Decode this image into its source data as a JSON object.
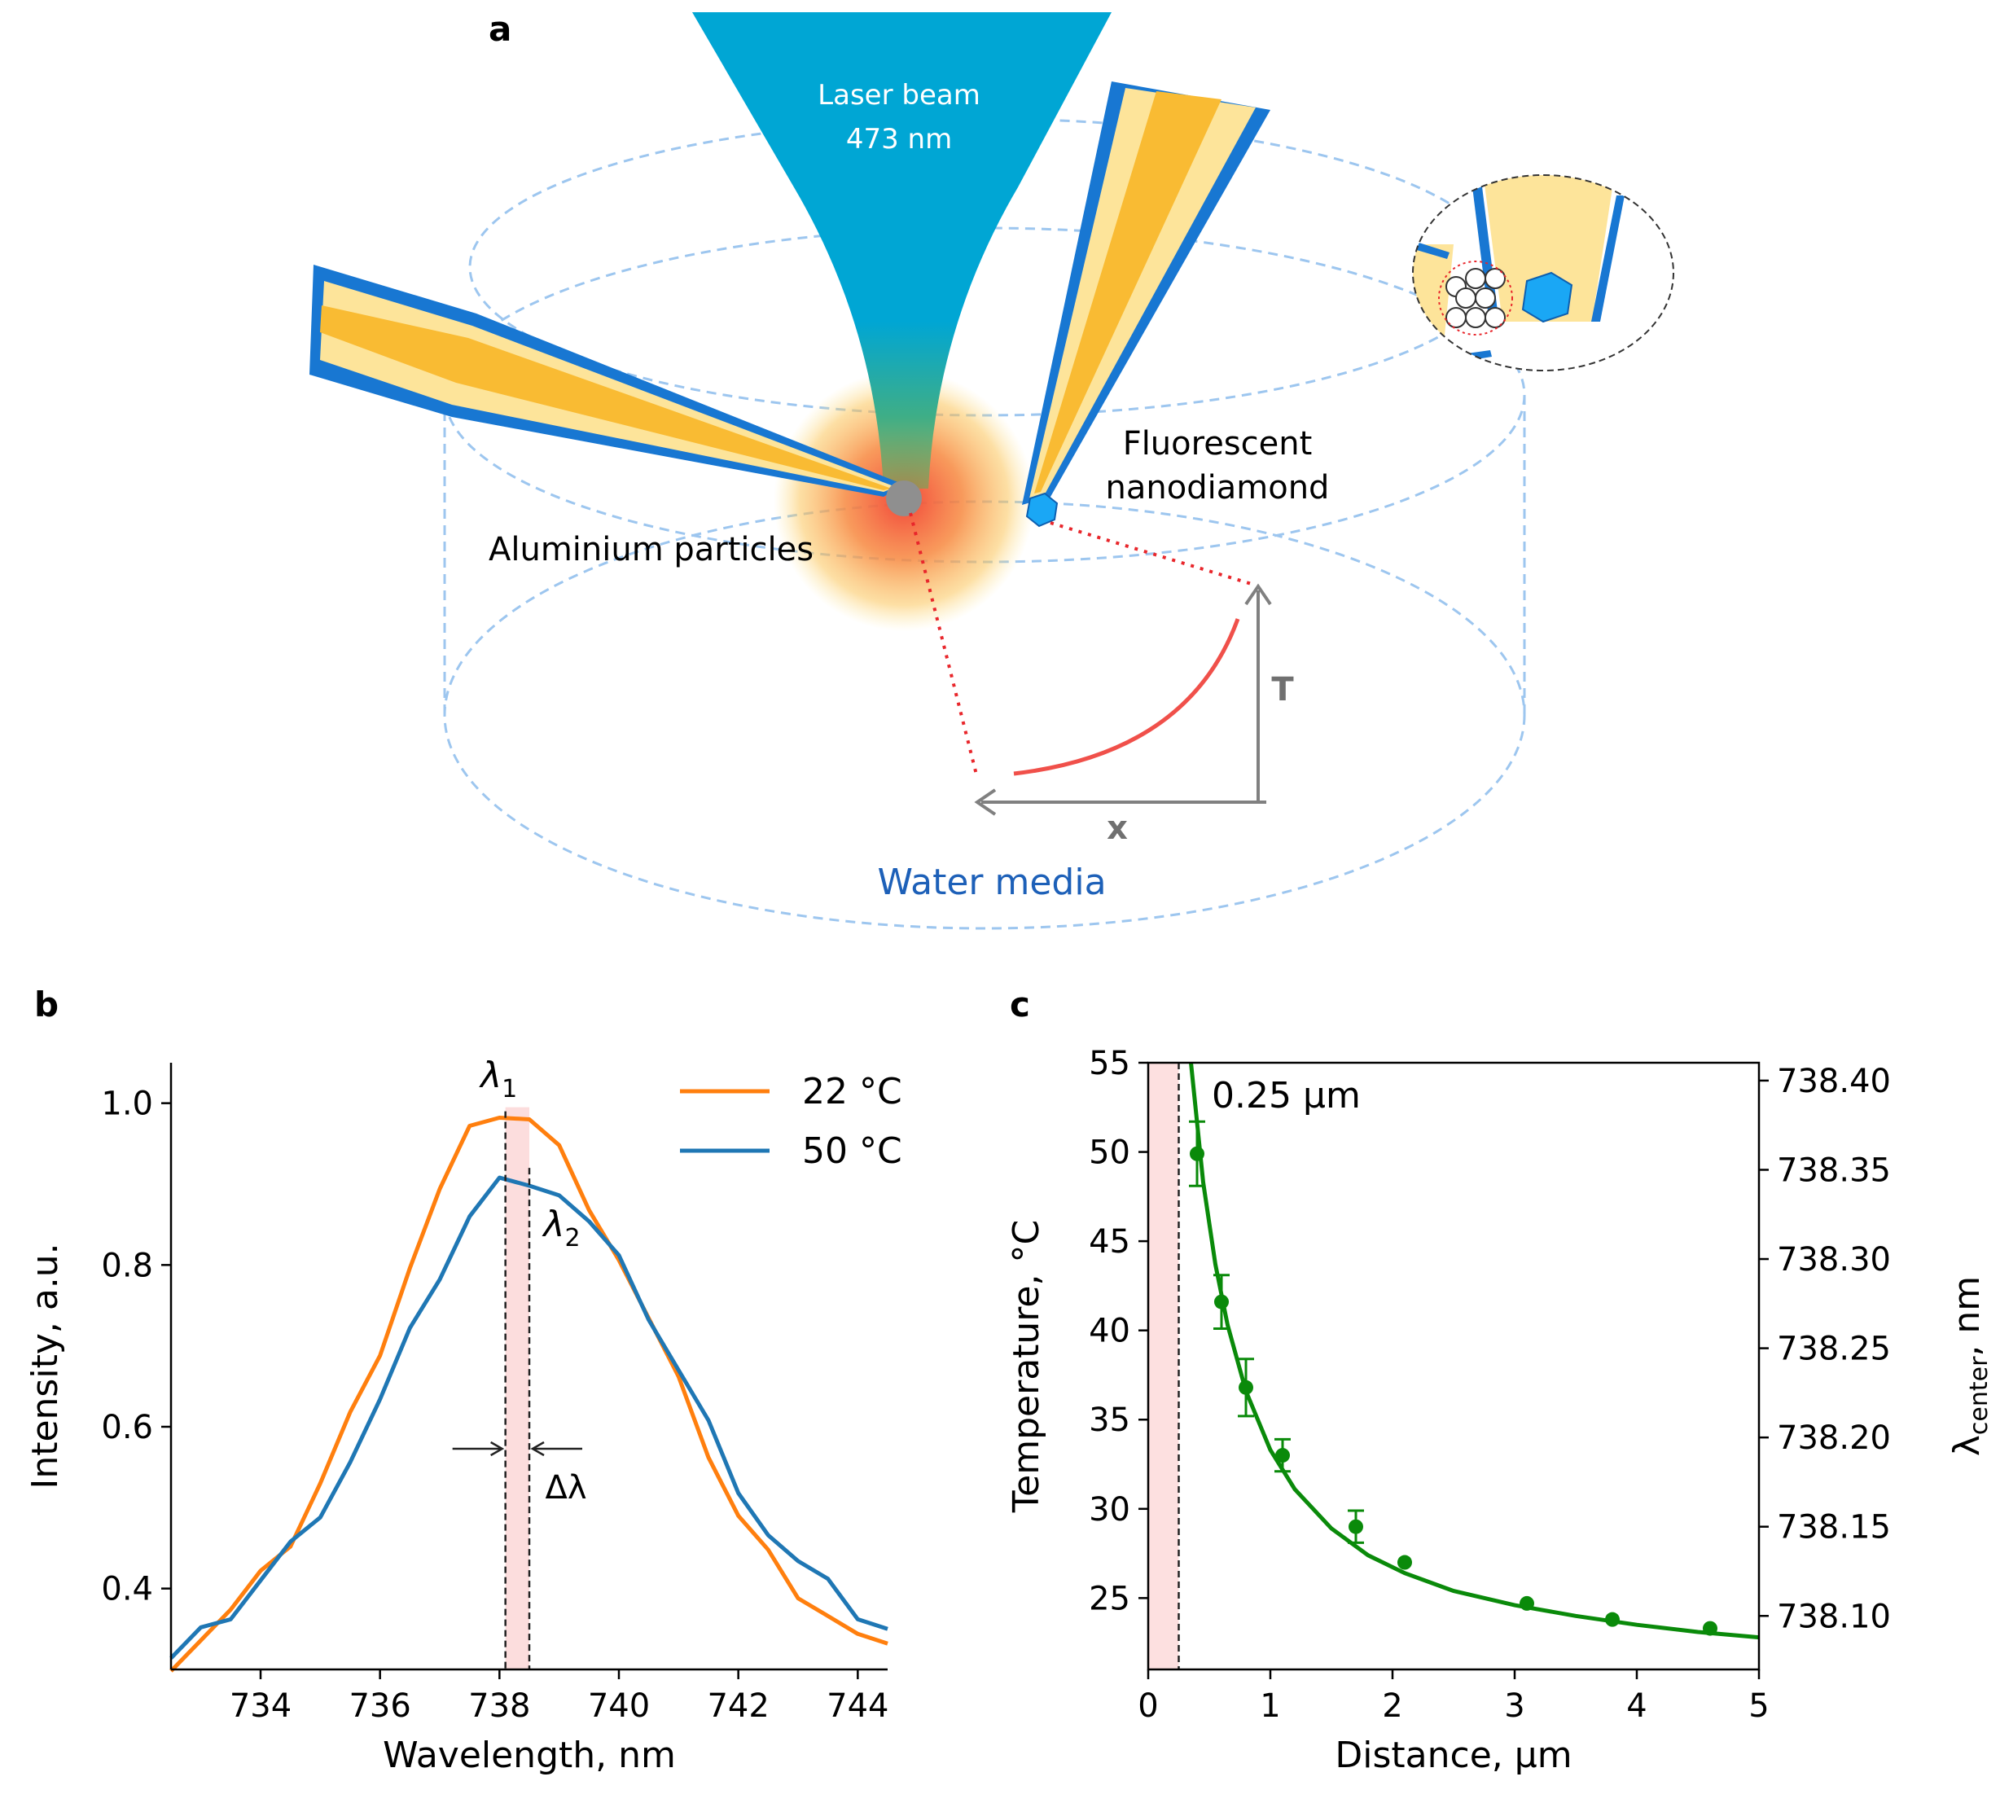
{
  "panel_a": {
    "label": "a",
    "laser_line1": "Laser beam",
    "laser_line2": "473 nm",
    "aluminium_label": "Aluminium particles",
    "nanodiamond_line1": "Fluorescent",
    "nanodiamond_line2": "nanodiamond",
    "water_label": "Water media",
    "axis_t": "T",
    "axis_x": "x",
    "colors": {
      "laser": "#00a6d4",
      "pipette_outer": "#1877d2",
      "pipette_fill": "#fde49a",
      "pipette_core": "#f9bb33",
      "dish_dash": "#9dc6ef",
      "heat": "#f2473a",
      "nanodiamond": "#1aa7f5",
      "water_text": "#1d60b8"
    }
  },
  "chart_data": [
    {
      "panel": "b",
      "type": "line",
      "xlabel": "Wavelength, nm",
      "ylabel": "Intensity, a.u.",
      "xlim": [
        732.5,
        744.5
      ],
      "ylim": [
        0.3,
        1.05
      ],
      "xticks": [
        "734",
        "736",
        "738",
        "740",
        "742",
        "744"
      ],
      "yticks": [
        "0.4",
        "0.6",
        "0.8",
        "1.0"
      ],
      "series": [
        {
          "name": "22 °C",
          "color": "#ff7f0e",
          "x": [
            732.5,
            733,
            733.5,
            734,
            734.5,
            735,
            735.5,
            736,
            736.5,
            737,
            737.5,
            738,
            738.5,
            739,
            739.5,
            740,
            740.5,
            741,
            741.5,
            742,
            742.5,
            743,
            743.5,
            744,
            744.5
          ],
          "y": [
            0.31,
            0.34,
            0.37,
            0.41,
            0.46,
            0.53,
            0.61,
            0.7,
            0.8,
            0.89,
            0.96,
            0.99,
            0.98,
            0.94,
            0.88,
            0.81,
            0.73,
            0.65,
            0.57,
            0.49,
            0.44,
            0.4,
            0.37,
            0.34,
            0.32
          ]
        },
        {
          "name": "50 °C",
          "color": "#1f77b4",
          "x": [
            732.5,
            733,
            733.5,
            734,
            734.5,
            735,
            735.5,
            736,
            736.5,
            737,
            737.5,
            738,
            738.5,
            739,
            739.5,
            740,
            740.5,
            741,
            741.5,
            742,
            742.5,
            743,
            743.5,
            744,
            744.5
          ],
          "y": [
            0.31,
            0.34,
            0.37,
            0.41,
            0.45,
            0.5,
            0.56,
            0.63,
            0.71,
            0.79,
            0.86,
            0.9,
            0.91,
            0.89,
            0.85,
            0.8,
            0.74,
            0.67,
            0.6,
            0.53,
            0.47,
            0.43,
            0.4,
            0.37,
            0.35
          ]
        }
      ],
      "annotations": {
        "lambda1": {
          "symbol": "λ",
          "sub": "1",
          "x": 738.1
        },
        "lambda2": {
          "symbol": "λ",
          "sub": "2",
          "x": 738.5
        },
        "delta": "Δλ"
      },
      "legend_position": "top-right",
      "grid": false
    },
    {
      "panel": "c",
      "type": "scatter",
      "xlabel": "Distance, μm",
      "ylabel": "Temperature, °C",
      "y2label_main": "λ",
      "y2label_sub": "center",
      "y2label_unit": ", nm",
      "xlim": [
        0,
        5
      ],
      "ylim": [
        21,
        55
      ],
      "y2lim": [
        738.07,
        738.41
      ],
      "xticks": [
        "0",
        "1",
        "2",
        "3",
        "4",
        "5"
      ],
      "yticks": [
        "25",
        "30",
        "35",
        "40",
        "45",
        "50",
        "55"
      ],
      "y2ticks": [
        "738.10",
        "738.15",
        "738.20",
        "738.25",
        "738.30",
        "738.35",
        "738.40"
      ],
      "points": [
        {
          "x": 0.4,
          "y": 49.9,
          "err": 1.8
        },
        {
          "x": 0.6,
          "y": 41.6,
          "err": 1.5
        },
        {
          "x": 0.8,
          "y": 36.8,
          "err": 1.6
        },
        {
          "x": 1.1,
          "y": 33.0,
          "err": 0.9
        },
        {
          "x": 1.7,
          "y": 29.0,
          "err": 0.9
        },
        {
          "x": 2.1,
          "y": 27.0,
          "err": 0.0
        },
        {
          "x": 3.1,
          "y": 24.7,
          "err": 0.0
        },
        {
          "x": 3.8,
          "y": 23.8,
          "err": 0.0
        },
        {
          "x": 4.6,
          "y": 23.3,
          "err": 0.0
        }
      ],
      "fit": {
        "x": [
          0.35,
          0.45,
          0.55,
          0.65,
          0.8,
          1.0,
          1.2,
          1.5,
          1.8,
          2.1,
          2.5,
          3.0,
          3.5,
          4.0,
          4.5,
          5.0
        ],
        "y": [
          55.0,
          48.3,
          43.7,
          40.3,
          36.6,
          33.3,
          31.1,
          28.9,
          27.4,
          26.4,
          25.4,
          24.6,
          24.0,
          23.5,
          23.1,
          22.8
        ]
      },
      "series_color": "#0a8a0a",
      "shade_until": 0.25,
      "annotation": "0.25 µm",
      "grid": false
    }
  ]
}
